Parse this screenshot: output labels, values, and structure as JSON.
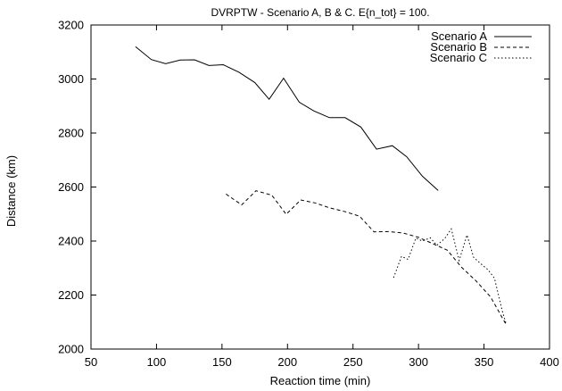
{
  "chart_data": {
    "type": "line",
    "title": "DVRPTW - Scenario A, B & C. E{n_tot} = 100.",
    "xlabel": "Reaction time (min)",
    "ylabel": "Distance (km)",
    "xlim": [
      50,
      400
    ],
    "ylim": [
      2000,
      3200
    ],
    "xticks": [
      50,
      100,
      150,
      200,
      250,
      300,
      350,
      400
    ],
    "yticks": [
      2000,
      2200,
      2400,
      2600,
      2800,
      3000,
      3200
    ],
    "grid": false,
    "legend_position": "top-right",
    "series": [
      {
        "name": "Scenario A",
        "dash": "solid",
        "x": [
          84,
          96,
          107,
          118,
          129,
          140,
          151,
          163,
          175,
          186,
          197,
          209,
          220,
          232,
          244,
          256,
          268,
          280,
          291,
          303,
          315
        ],
        "y": [
          3120,
          3072,
          3057,
          3070,
          3071,
          3050,
          3053,
          3025,
          2987,
          2925,
          3003,
          2914,
          2882,
          2857,
          2857,
          2822,
          2740,
          2753,
          2712,
          2640,
          2587
        ]
      },
      {
        "name": "Scenario B",
        "dash": "dashed",
        "x": [
          153,
          165,
          176,
          188,
          199,
          210,
          221,
          232,
          243,
          255,
          266,
          277,
          288,
          300,
          311,
          322,
          333,
          344,
          355,
          367
        ],
        "y": [
          2574,
          2534,
          2586,
          2570,
          2499,
          2552,
          2541,
          2523,
          2510,
          2492,
          2434,
          2435,
          2430,
          2414,
          2390,
          2366,
          2302,
          2252,
          2193,
          2090
        ]
      },
      {
        "name": "Scenario C",
        "dash": "dotted",
        "x": [
          281,
          287,
          292,
          298,
          303,
          309,
          314,
          320,
          325,
          331,
          337,
          342,
          347,
          353,
          358,
          364,
          367
        ],
        "y": [
          2264,
          2343,
          2332,
          2411,
          2400,
          2412,
          2384,
          2409,
          2445,
          2328,
          2422,
          2340,
          2318,
          2294,
          2262,
          2140,
          2092
        ]
      }
    ]
  }
}
